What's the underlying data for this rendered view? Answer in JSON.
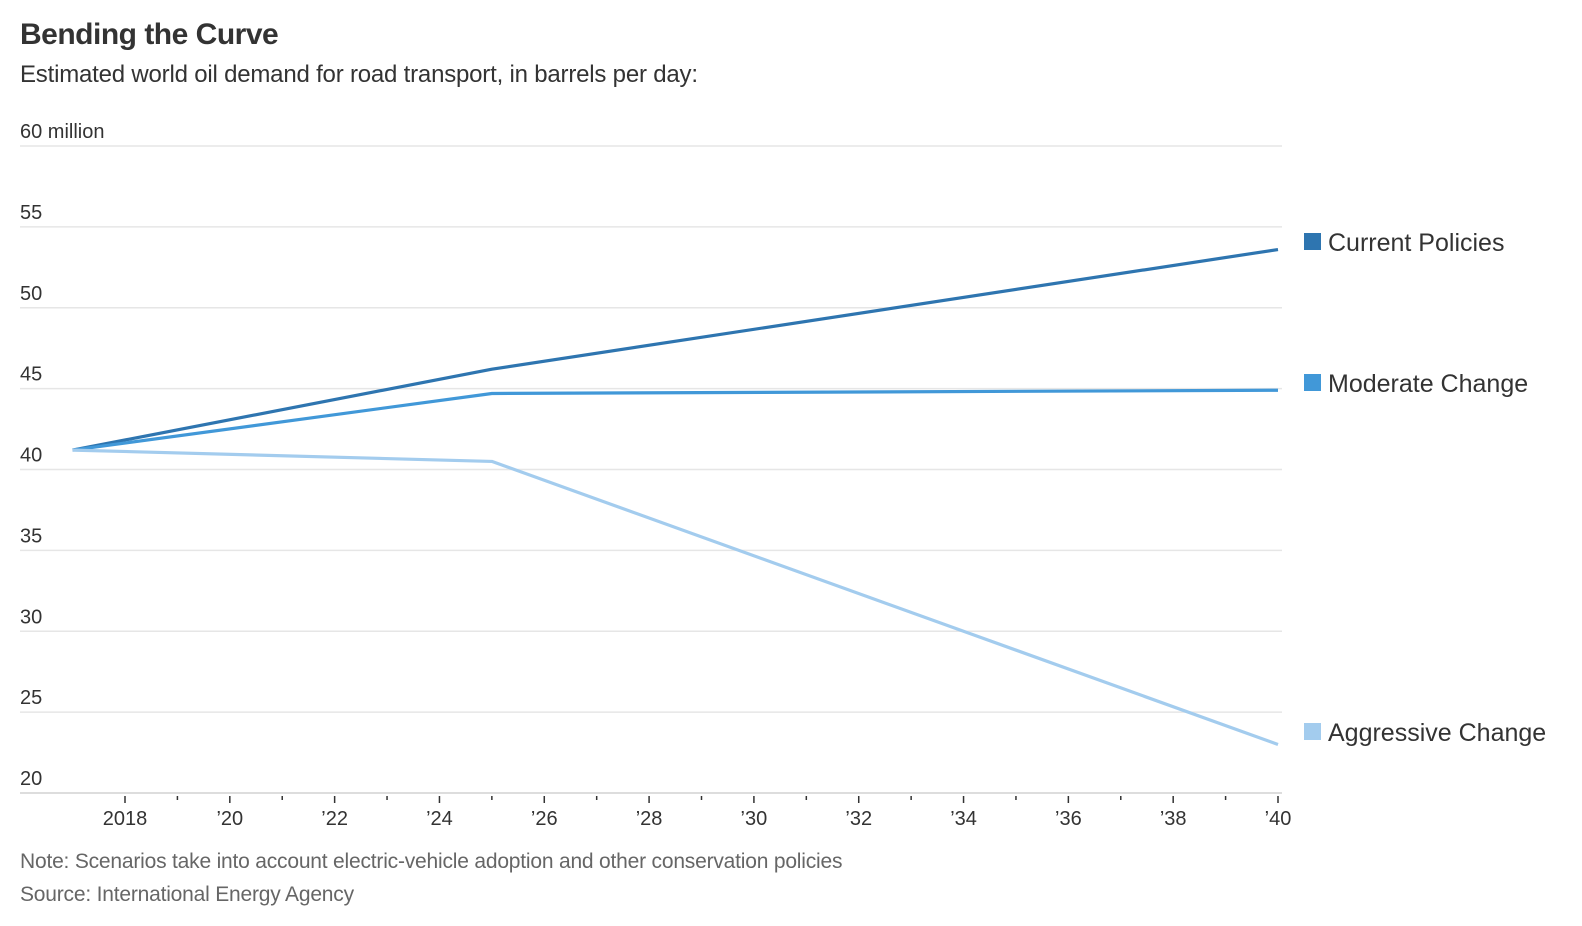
{
  "header": {
    "title": "Bending the Curve",
    "subtitle": "Estimated world oil demand for road transport, in barrels per day:"
  },
  "footer": {
    "note": "Note: Scenarios take into account electric-vehicle adoption and other conservation policies",
    "source": "Source: International Energy Agency"
  },
  "chart_data": {
    "type": "line",
    "title": "Bending the Curve",
    "subtitle": "Estimated world oil demand for road transport, in barrels per day:",
    "xlabel": "",
    "ylabel": "",
    "y_unit_label": "million",
    "xlim": [
      2017,
      2040
    ],
    "ylim": [
      20,
      60
    ],
    "grid": true,
    "legend_position": "right (inline at line ends)",
    "y_ticks": [
      {
        "value": 60,
        "label": "60 million"
      },
      {
        "value": 55,
        "label": "55"
      },
      {
        "value": 50,
        "label": "50"
      },
      {
        "value": 45,
        "label": "45"
      },
      {
        "value": 40,
        "label": "40"
      },
      {
        "value": 35,
        "label": "35"
      },
      {
        "value": 30,
        "label": "30"
      },
      {
        "value": 25,
        "label": "25"
      },
      {
        "value": 20,
        "label": "20"
      }
    ],
    "x_ticks": [
      {
        "value": 2018,
        "label": "2018"
      },
      {
        "value": 2019,
        "label": ""
      },
      {
        "value": 2020,
        "label": "’20"
      },
      {
        "value": 2021,
        "label": ""
      },
      {
        "value": 2022,
        "label": "’22"
      },
      {
        "value": 2023,
        "label": ""
      },
      {
        "value": 2024,
        "label": "’24"
      },
      {
        "value": 2025,
        "label": ""
      },
      {
        "value": 2026,
        "label": "’26"
      },
      {
        "value": 2027,
        "label": ""
      },
      {
        "value": 2028,
        "label": "’28"
      },
      {
        "value": 2029,
        "label": ""
      },
      {
        "value": 2030,
        "label": "’30"
      },
      {
        "value": 2031,
        "label": ""
      },
      {
        "value": 2032,
        "label": "’32"
      },
      {
        "value": 2033,
        "label": ""
      },
      {
        "value": 2034,
        "label": "’34"
      },
      {
        "value": 2035,
        "label": ""
      },
      {
        "value": 2036,
        "label": "’36"
      },
      {
        "value": 2037,
        "label": ""
      },
      {
        "value": 2038,
        "label": "’38"
      },
      {
        "value": 2039,
        "label": ""
      },
      {
        "value": 2040,
        "label": "’40"
      }
    ],
    "x": [
      2017,
      2025,
      2040
    ],
    "series": [
      {
        "name": "Current Policies",
        "color": "#2e75b0",
        "values": [
          41.2,
          46.2,
          53.6
        ]
      },
      {
        "name": "Moderate Change",
        "color": "#4198d8",
        "values": [
          41.2,
          44.7,
          44.9
        ]
      },
      {
        "name": "Aggressive Change",
        "color": "#a3ccee",
        "values": [
          41.2,
          40.5,
          23.0
        ]
      }
    ],
    "colors": {
      "gridline": "#e6e6e6",
      "tick": "#333333"
    }
  }
}
